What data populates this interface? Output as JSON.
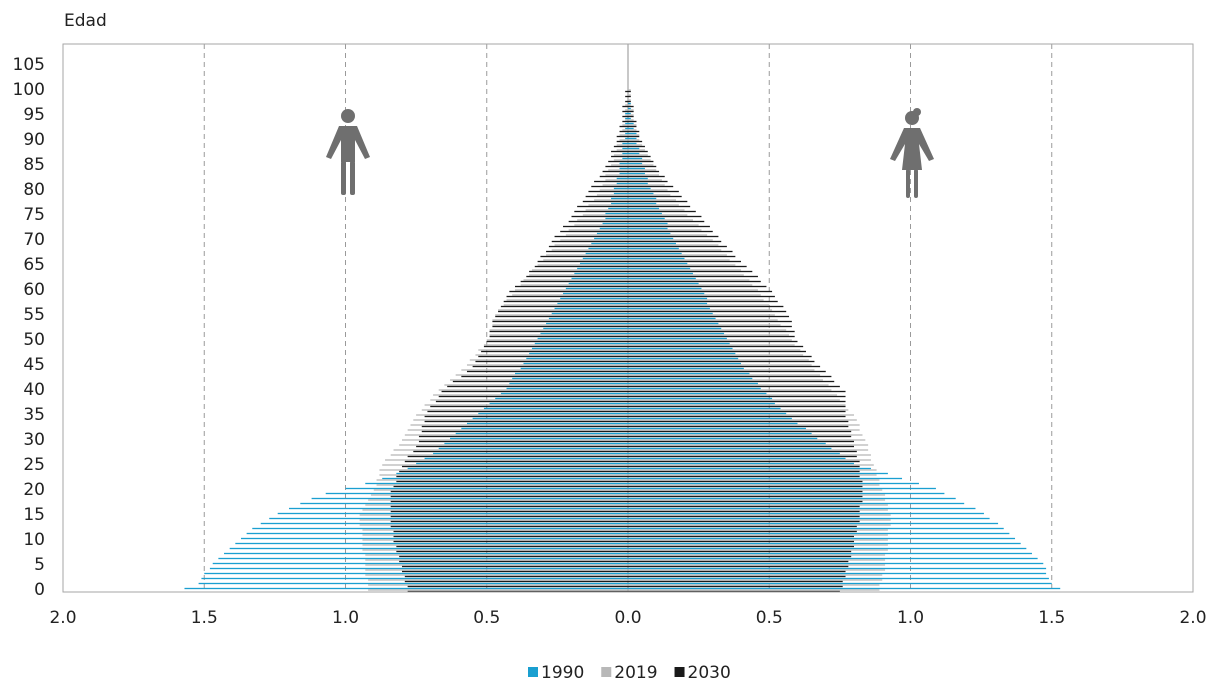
{
  "chart_data": {
    "type": "pyramid",
    "y_label": "Edad",
    "y": [
      0,
      1,
      2,
      3,
      4,
      5,
      6,
      7,
      8,
      9,
      10,
      11,
      12,
      13,
      14,
      15,
      16,
      17,
      18,
      19,
      20,
      21,
      22,
      23,
      24,
      25,
      26,
      27,
      28,
      29,
      30,
      31,
      32,
      33,
      34,
      35,
      36,
      37,
      38,
      39,
      40,
      41,
      42,
      43,
      44,
      45,
      46,
      47,
      48,
      49,
      50,
      51,
      52,
      53,
      54,
      55,
      56,
      57,
      58,
      59,
      60,
      61,
      62,
      63,
      64,
      65,
      66,
      67,
      68,
      69,
      70,
      71,
      72,
      73,
      74,
      75,
      76,
      77,
      78,
      79,
      80,
      81,
      82,
      83,
      84,
      85,
      86,
      87,
      88,
      89,
      90,
      91,
      92,
      93,
      94,
      95,
      96,
      97,
      98,
      99,
      100
    ],
    "xlim": [
      -2,
      2
    ],
    "ylim": [
      -0.4,
      109.2
    ],
    "xticks": [
      {
        "value": -2,
        "label": "2.0"
      },
      {
        "value": -1.5,
        "label": "1.5"
      },
      {
        "value": -1,
        "label": "1.0"
      },
      {
        "value": -0.5,
        "label": "0.5"
      },
      {
        "value": 0,
        "label": "0.0"
      },
      {
        "value": 0.5,
        "label": "0.5"
      },
      {
        "value": 1,
        "label": "1.0"
      },
      {
        "value": 1.5,
        "label": "1.5"
      },
      {
        "value": 2,
        "label": "2.0"
      }
    ],
    "yticks": [
      0,
      5,
      10,
      15,
      20,
      25,
      30,
      35,
      40,
      45,
      50,
      55,
      60,
      65,
      70,
      75,
      80,
      85,
      90,
      95,
      100,
      105
    ],
    "grid": true,
    "series": [
      {
        "name": "1990",
        "color": "#1a9fd0",
        "men": [
          -1.57,
          -1.52,
          -1.51,
          -1.5,
          -1.48,
          -1.47,
          -1.45,
          -1.43,
          -1.41,
          -1.39,
          -1.37,
          -1.35,
          -1.33,
          -1.3,
          -1.27,
          -1.24,
          -1.2,
          -1.16,
          -1.12,
          -1.07,
          -1.0,
          -0.93,
          -0.87,
          -0.82,
          -0.78,
          -0.75,
          -0.72,
          -0.69,
          -0.67,
          -0.65,
          -0.63,
          -0.61,
          -0.59,
          -0.57,
          -0.55,
          -0.53,
          -0.51,
          -0.49,
          -0.47,
          -0.45,
          -0.43,
          -0.42,
          -0.41,
          -0.4,
          -0.38,
          -0.37,
          -0.36,
          -0.35,
          -0.34,
          -0.33,
          -0.32,
          -0.31,
          -0.3,
          -0.29,
          -0.28,
          -0.27,
          -0.26,
          -0.25,
          -0.24,
          -0.23,
          -0.22,
          -0.21,
          -0.2,
          -0.19,
          -0.18,
          -0.17,
          -0.16,
          -0.15,
          -0.14,
          -0.13,
          -0.12,
          -0.11,
          -0.1,
          -0.09,
          -0.08,
          -0.08,
          -0.07,
          -0.06,
          -0.06,
          -0.05,
          -0.05,
          -0.04,
          -0.04,
          -0.03,
          -0.03,
          -0.03,
          -0.02,
          -0.02,
          -0.02,
          -0.02,
          -0.01,
          -0.01,
          -0.01,
          -0.01,
          -0.01,
          -0.01,
          0,
          0,
          0,
          0,
          0
        ],
        "women": [
          1.53,
          1.5,
          1.49,
          1.48,
          1.48,
          1.47,
          1.45,
          1.43,
          1.41,
          1.39,
          1.37,
          1.35,
          1.33,
          1.31,
          1.28,
          1.26,
          1.23,
          1.19,
          1.16,
          1.12,
          1.09,
          1.03,
          0.97,
          0.92,
          0.86,
          0.8,
          0.77,
          0.75,
          0.72,
          0.7,
          0.67,
          0.65,
          0.63,
          0.6,
          0.58,
          0.56,
          0.54,
          0.52,
          0.51,
          0.49,
          0.47,
          0.46,
          0.44,
          0.43,
          0.41,
          0.4,
          0.39,
          0.38,
          0.37,
          0.36,
          0.35,
          0.34,
          0.33,
          0.32,
          0.31,
          0.3,
          0.29,
          0.28,
          0.28,
          0.27,
          0.26,
          0.25,
          0.24,
          0.23,
          0.22,
          0.21,
          0.2,
          0.19,
          0.18,
          0.17,
          0.16,
          0.15,
          0.14,
          0.14,
          0.13,
          0.12,
          0.11,
          0.1,
          0.1,
          0.09,
          0.08,
          0.07,
          0.07,
          0.06,
          0.06,
          0.05,
          0.05,
          0.04,
          0.04,
          0.03,
          0.03,
          0.03,
          0.02,
          0.02,
          0.01,
          0.01,
          0.01,
          0.01,
          0,
          0,
          0
        ]
      },
      {
        "name": "2019",
        "color": "#b8b8b8",
        "men": [
          -0.92,
          -0.92,
          -0.92,
          -0.93,
          -0.93,
          -0.93,
          -0.93,
          -0.93,
          -0.94,
          -0.94,
          -0.94,
          -0.94,
          -0.94,
          -0.95,
          -0.95,
          -0.95,
          -0.94,
          -0.93,
          -0.92,
          -0.91,
          -0.9,
          -0.89,
          -0.89,
          -0.88,
          -0.88,
          -0.87,
          -0.86,
          -0.84,
          -0.83,
          -0.81,
          -0.8,
          -0.79,
          -0.78,
          -0.77,
          -0.76,
          -0.75,
          -0.73,
          -0.72,
          -0.7,
          -0.69,
          -0.67,
          -0.65,
          -0.63,
          -0.61,
          -0.59,
          -0.57,
          -0.56,
          -0.54,
          -0.53,
          -0.51,
          -0.5,
          -0.49,
          -0.49,
          -0.48,
          -0.48,
          -0.47,
          -0.46,
          -0.44,
          -0.43,
          -0.41,
          -0.4,
          -0.38,
          -0.37,
          -0.35,
          -0.34,
          -0.32,
          -0.3,
          -0.29,
          -0.27,
          -0.26,
          -0.24,
          -0.22,
          -0.21,
          -0.19,
          -0.18,
          -0.16,
          -0.15,
          -0.14,
          -0.12,
          -0.11,
          -0.1,
          -0.09,
          -0.08,
          -0.08,
          -0.07,
          -0.06,
          -0.05,
          -0.05,
          -0.04,
          -0.04,
          -0.03,
          -0.03,
          -0.02,
          -0.02,
          -0.01,
          -0.01,
          -0.01,
          -0.01,
          0,
          0,
          0
        ],
        "women": [
          0.89,
          0.89,
          0.9,
          0.9,
          0.91,
          0.91,
          0.91,
          0.91,
          0.92,
          0.92,
          0.92,
          0.92,
          0.92,
          0.93,
          0.93,
          0.93,
          0.92,
          0.92,
          0.91,
          0.91,
          0.9,
          0.89,
          0.89,
          0.88,
          0.88,
          0.87,
          0.86,
          0.86,
          0.85,
          0.85,
          0.84,
          0.83,
          0.82,
          0.82,
          0.81,
          0.8,
          0.78,
          0.77,
          0.75,
          0.74,
          0.72,
          0.71,
          0.69,
          0.68,
          0.66,
          0.65,
          0.64,
          0.62,
          0.61,
          0.59,
          0.58,
          0.57,
          0.56,
          0.54,
          0.53,
          0.52,
          0.51,
          0.5,
          0.48,
          0.47,
          0.46,
          0.44,
          0.43,
          0.41,
          0.4,
          0.38,
          0.36,
          0.35,
          0.33,
          0.32,
          0.3,
          0.28,
          0.26,
          0.25,
          0.23,
          0.21,
          0.2,
          0.18,
          0.17,
          0.15,
          0.14,
          0.13,
          0.12,
          0.11,
          0.1,
          0.09,
          0.08,
          0.07,
          0.06,
          0.05,
          0.04,
          0.04,
          0.03,
          0.03,
          0.02,
          0.02,
          0.02,
          0.01,
          0.01,
          0.01,
          0.01
        ]
      },
      {
        "name": "2030",
        "color": "#1a1a1a",
        "men": [
          -0.78,
          -0.78,
          -0.79,
          -0.79,
          -0.8,
          -0.8,
          -0.81,
          -0.81,
          -0.82,
          -0.82,
          -0.83,
          -0.83,
          -0.83,
          -0.84,
          -0.84,
          -0.84,
          -0.84,
          -0.84,
          -0.84,
          -0.84,
          -0.84,
          -0.83,
          -0.82,
          -0.82,
          -0.81,
          -0.8,
          -0.79,
          -0.78,
          -0.76,
          -0.75,
          -0.74,
          -0.74,
          -0.73,
          -0.73,
          -0.72,
          -0.72,
          -0.71,
          -0.7,
          -0.68,
          -0.67,
          -0.66,
          -0.64,
          -0.62,
          -0.59,
          -0.57,
          -0.55,
          -0.54,
          -0.53,
          -0.52,
          -0.51,
          -0.5,
          -0.49,
          -0.49,
          -0.48,
          -0.48,
          -0.47,
          -0.46,
          -0.45,
          -0.44,
          -0.43,
          -0.42,
          -0.4,
          -0.38,
          -0.36,
          -0.35,
          -0.33,
          -0.32,
          -0.31,
          -0.29,
          -0.28,
          -0.27,
          -0.26,
          -0.24,
          -0.23,
          -0.21,
          -0.2,
          -0.19,
          -0.18,
          -0.16,
          -0.15,
          -0.14,
          -0.13,
          -0.12,
          -0.1,
          -0.09,
          -0.08,
          -0.07,
          -0.06,
          -0.06,
          -0.05,
          -0.04,
          -0.04,
          -0.03,
          -0.03,
          -0.02,
          -0.02,
          -0.02,
          -0.02,
          -0.01,
          -0.01,
          -0.01
        ],
        "women": [
          0.75,
          0.76,
          0.76,
          0.77,
          0.77,
          0.78,
          0.78,
          0.79,
          0.79,
          0.8,
          0.8,
          0.8,
          0.81,
          0.81,
          0.82,
          0.82,
          0.82,
          0.82,
          0.83,
          0.83,
          0.83,
          0.83,
          0.83,
          0.82,
          0.82,
          0.82,
          0.82,
          0.81,
          0.81,
          0.8,
          0.8,
          0.79,
          0.79,
          0.78,
          0.78,
          0.77,
          0.77,
          0.77,
          0.77,
          0.77,
          0.77,
          0.75,
          0.73,
          0.72,
          0.7,
          0.68,
          0.66,
          0.65,
          0.63,
          0.62,
          0.6,
          0.59,
          0.59,
          0.58,
          0.58,
          0.57,
          0.56,
          0.55,
          0.53,
          0.52,
          0.51,
          0.49,
          0.47,
          0.46,
          0.44,
          0.42,
          0.4,
          0.38,
          0.37,
          0.35,
          0.33,
          0.32,
          0.3,
          0.29,
          0.27,
          0.26,
          0.24,
          0.22,
          0.21,
          0.19,
          0.18,
          0.16,
          0.14,
          0.13,
          0.11,
          0.1,
          0.09,
          0.08,
          0.07,
          0.06,
          0.05,
          0.04,
          0.04,
          0.03,
          0.03,
          0.02,
          0.02,
          0.02,
          0.01,
          0.01,
          0.01
        ]
      }
    ]
  }
}
